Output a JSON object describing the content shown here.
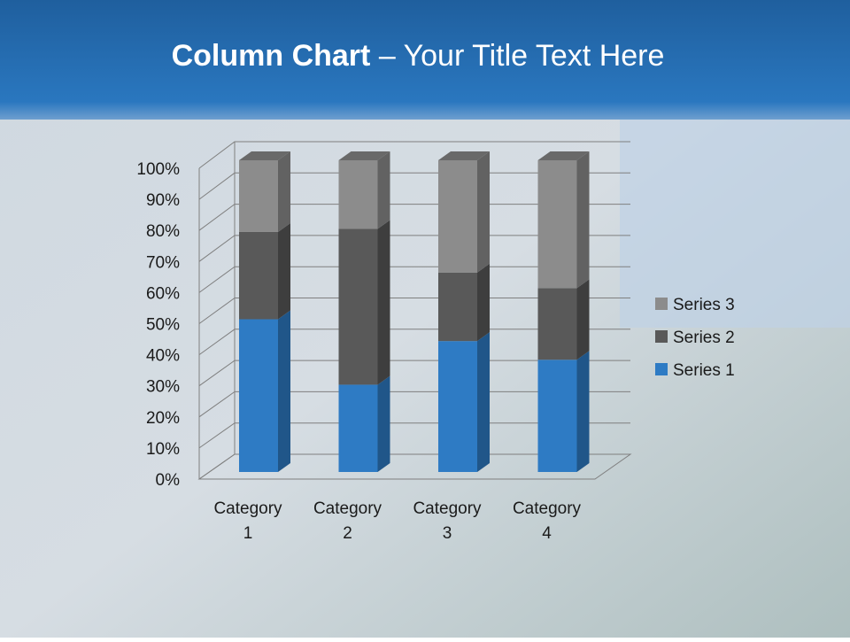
{
  "chart_data": {
    "type": "stacked-bar-3d",
    "title": {
      "bold": "Column Chart",
      "rest": "– Your Title Text Here"
    },
    "categories": [
      "Category 1",
      "Category 2",
      "Category 3",
      "Category 4"
    ],
    "series": [
      {
        "name": "Series 1",
        "color": "#2e7bc4",
        "values": [
          49,
          28,
          42,
          36
        ]
      },
      {
        "name": "Series 2",
        "color": "#595959",
        "values": [
          28,
          50,
          22,
          23
        ]
      },
      {
        "name": "Series 3",
        "color": "#8c8c8c",
        "values": [
          23,
          22,
          36,
          41
        ]
      }
    ],
    "ylim": [
      0,
      100
    ],
    "yticks": [
      {
        "value": 0,
        "label": "0%"
      },
      {
        "value": 10,
        "label": "10%"
      },
      {
        "value": 20,
        "label": "20%"
      },
      {
        "value": 30,
        "label": "30%"
      },
      {
        "value": 40,
        "label": "40%"
      },
      {
        "value": 50,
        "label": "50%"
      },
      {
        "value": 60,
        "label": "60%"
      },
      {
        "value": 70,
        "label": "70%"
      },
      {
        "value": 80,
        "label": "80%"
      },
      {
        "value": 90,
        "label": "90%"
      },
      {
        "value": 100,
        "label": "100%"
      }
    ],
    "grid": true,
    "legend": "right"
  }
}
